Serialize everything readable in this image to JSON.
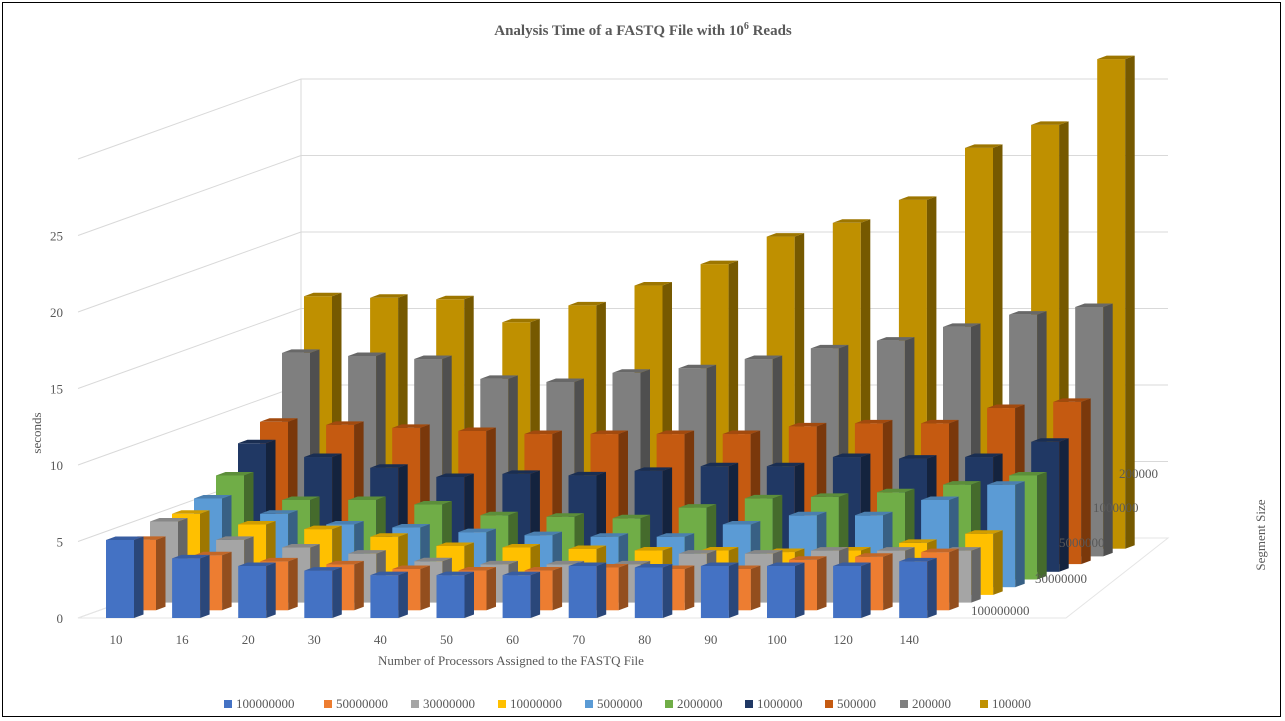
{
  "chart_data": {
    "type": "bar",
    "subtype": "3d-column",
    "title": "Analysis Time of a FASTQ File with 10",
    "title_superscript": "6",
    "title_suffix": " Reads",
    "xlabel": "Number of Processors Assigned to the FASTQ File",
    "ylabel": "seconds",
    "zlabel": "Segment Size",
    "ylim": [
      0,
      30
    ],
    "yticks": [
      "0",
      "5",
      "10",
      "15",
      "20",
      "25"
    ],
    "grid": true,
    "legend_position": "bottom",
    "categories": [
      "10",
      "16",
      "20",
      "30",
      "40",
      "50",
      "60",
      "70",
      "80",
      "90",
      "100",
      "120",
      "140"
    ],
    "depth_labels": [
      "100000000",
      "30000000",
      "5000000",
      "1000000",
      "200000"
    ],
    "series": [
      {
        "name": "100000000",
        "color": "#4472C4",
        "values": [
          5.1,
          3.9,
          3.4,
          3.1,
          2.8,
          2.8,
          2.8,
          3.4,
          3.3,
          3.4,
          3.4,
          3.4,
          3.7
        ]
      },
      {
        "name": "50000000",
        "color": "#ED7D31",
        "values": [
          4.6,
          3.6,
          3.2,
          3.0,
          2.7,
          2.6,
          2.6,
          2.8,
          2.7,
          2.7,
          3.3,
          3.5,
          3.8
        ]
      },
      {
        "name": "30000000",
        "color": "#A5A5A5",
        "values": [
          5.3,
          4.1,
          3.6,
          3.2,
          2.7,
          2.5,
          2.5,
          2.5,
          3.2,
          3.2,
          3.4,
          3.4,
          3.4
        ]
      },
      {
        "name": "10000000",
        "color": "#FFC000",
        "values": [
          5.3,
          4.6,
          4.3,
          3.8,
          3.2,
          3.1,
          3.0,
          2.9,
          2.9,
          2.8,
          2.9,
          3.4,
          4.0
        ]
      },
      {
        "name": "5000000",
        "color": "#5B9BD5",
        "values": [
          5.8,
          4.8,
          4.1,
          3.9,
          3.6,
          3.4,
          3.3,
          3.3,
          4.1,
          4.7,
          4.7,
          5.7,
          6.7
        ]
      },
      {
        "name": "2000000",
        "color": "#70AD47",
        "values": [
          6.8,
          5.2,
          5.2,
          4.9,
          4.2,
          4.1,
          4.0,
          4.7,
          5.3,
          5.4,
          5.7,
          6.2,
          6.8
        ]
      },
      {
        "name": "1000000",
        "color": "#203864",
        "values": [
          8.4,
          7.5,
          6.8,
          6.2,
          6.4,
          6.3,
          6.6,
          6.9,
          6.9,
          7.5,
          7.4,
          7.5,
          8.5
        ]
      },
      {
        "name": "500000",
        "color": "#C55A11",
        "values": [
          9.3,
          9.1,
          8.9,
          8.7,
          8.5,
          8.5,
          8.5,
          8.5,
          9.0,
          9.2,
          9.2,
          10.2,
          10.6
        ]
      },
      {
        "name": "200000",
        "color": "#7F7F7F",
        "values": [
          13.3,
          13.1,
          12.9,
          11.6,
          11.4,
          12.0,
          12.3,
          12.9,
          13.6,
          14.1,
          15.0,
          15.8,
          16.3
        ]
      },
      {
        "name": "100000",
        "color": "#BF9000",
        "values": [
          16.5,
          16.4,
          16.3,
          14.8,
          15.9,
          17.2,
          18.6,
          20.4,
          21.3,
          22.8,
          26.2,
          27.7,
          32.0
        ]
      }
    ]
  }
}
